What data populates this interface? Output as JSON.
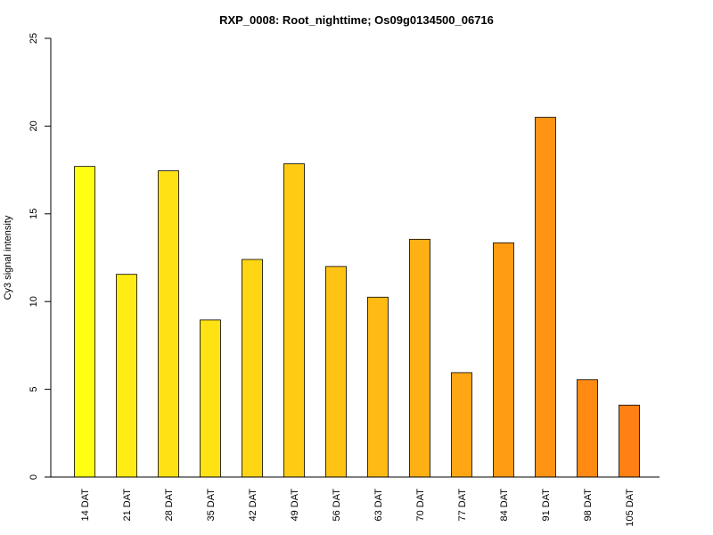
{
  "chart_data": {
    "type": "bar",
    "title": "RXP_0008: Root_nighttime; Os09g0134500_06716",
    "xlabel": "",
    "ylabel": "Cy3 signal intensity",
    "ylim": [
      0,
      25
    ],
    "yticks": [
      0,
      5,
      10,
      15,
      20,
      25
    ],
    "grid": false,
    "categories": [
      "14 DAT",
      "21 DAT",
      "28 DAT",
      "35 DAT",
      "42 DAT",
      "49 DAT",
      "56 DAT",
      "63 DAT",
      "70 DAT",
      "77 DAT",
      "84 DAT",
      "91 DAT",
      "98 DAT",
      "105 DAT"
    ],
    "values": [
      17.7,
      11.55,
      17.45,
      8.95,
      12.4,
      17.85,
      12.0,
      10.25,
      13.55,
      5.95,
      13.35,
      20.5,
      5.55,
      4.1
    ],
    "colors": [
      "#FFFF14",
      "#FFEC14",
      "#FFE214",
      "#FFE214",
      "#FFD614",
      "#FFCC14",
      "#FFC314",
      "#FFBA14",
      "#FFB014",
      "#FFA614",
      "#FF9C14",
      "#FF9414",
      "#FF8A14",
      "#FF8014"
    ]
  }
}
